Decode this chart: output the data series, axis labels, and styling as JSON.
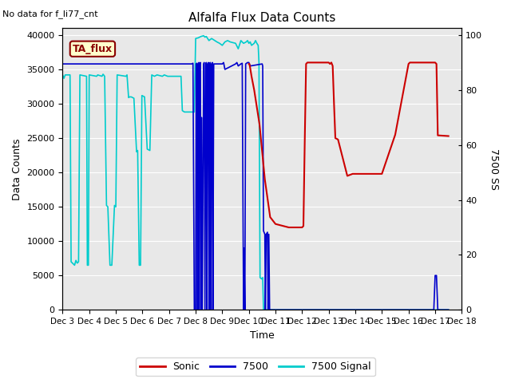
{
  "title": "Alfalfa Flux Data Counts",
  "xlabel": "Time",
  "ylabel": "Data Counts",
  "ylabel_right": "7500 SS",
  "top_left_text": "No data for f_li77_cnt",
  "legend_label": "TA_flux",
  "xlim_days": [
    3,
    18
  ],
  "ylim": [
    0,
    41000
  ],
  "ylim_right": [
    0,
    102.5
  ],
  "yticks": [
    0,
    5000,
    10000,
    15000,
    20000,
    25000,
    30000,
    35000,
    40000
  ],
  "yticks_right": [
    0,
    20,
    40,
    60,
    80,
    100
  ],
  "xtick_labels": [
    "Dec 3",
    "Dec 4",
    "Dec 5",
    "Dec 6",
    "Dec 7",
    "Dec 8",
    "Dec 9",
    "Dec 10",
    "Dec 11",
    "Dec 12",
    "Dec 13",
    "Dec 14",
    "Dec 15",
    "Dec 16",
    "Dec 17",
    "Dec 18"
  ],
  "bg_color": "#e8e8e8",
  "sonic_color": "#cc0000",
  "b7500_color": "#0000cc",
  "signal_color": "#00cccc",
  "sonic_data": [
    [
      10.0,
      35800
    ],
    [
      10.02,
      35800
    ],
    [
      10.05,
      35200
    ],
    [
      10.1,
      34000
    ],
    [
      10.2,
      32000
    ],
    [
      10.4,
      27000
    ],
    [
      10.6,
      19000
    ],
    [
      10.8,
      13500
    ],
    [
      11.0,
      12500
    ],
    [
      11.5,
      12000
    ],
    [
      12.0,
      12000
    ],
    [
      12.05,
      12200
    ],
    [
      12.1,
      24500
    ],
    [
      12.15,
      35800
    ],
    [
      12.2,
      36000
    ],
    [
      13.0,
      36000
    ],
    [
      13.05,
      35800
    ],
    [
      13.1,
      36000
    ],
    [
      13.15,
      35500
    ],
    [
      13.2,
      30000
    ],
    [
      13.25,
      25000
    ],
    [
      13.35,
      24800
    ],
    [
      13.7,
      19500
    ],
    [
      13.9,
      19800
    ],
    [
      14.2,
      19800
    ],
    [
      15.0,
      19800
    ],
    [
      15.5,
      25500
    ],
    [
      16.0,
      35800
    ],
    [
      16.05,
      36000
    ],
    [
      17.0,
      36000
    ],
    [
      17.05,
      35800
    ],
    [
      17.1,
      25400
    ],
    [
      17.5,
      25300
    ]
  ],
  "b7500_data": [
    [
      3.0,
      35800
    ],
    [
      7.0,
      35800
    ],
    [
      7.85,
      35800
    ],
    [
      7.9,
      35900
    ],
    [
      7.95,
      0
    ],
    [
      8.0,
      0
    ],
    [
      8.02,
      35800
    ],
    [
      8.05,
      35900
    ],
    [
      8.07,
      0
    ],
    [
      8.1,
      35800
    ],
    [
      8.12,
      36000
    ],
    [
      8.13,
      0
    ],
    [
      8.15,
      35800
    ],
    [
      8.18,
      36000
    ],
    [
      8.2,
      0
    ],
    [
      8.22,
      28000
    ],
    [
      8.25,
      0
    ],
    [
      8.3,
      35800
    ],
    [
      8.32,
      36000
    ],
    [
      8.35,
      0
    ],
    [
      8.38,
      35800
    ],
    [
      8.4,
      36000
    ],
    [
      8.42,
      0
    ],
    [
      8.45,
      35800
    ],
    [
      8.48,
      36000
    ],
    [
      8.5,
      0
    ],
    [
      8.52,
      35800
    ],
    [
      8.55,
      36000
    ],
    [
      8.58,
      0
    ],
    [
      8.6,
      35800
    ],
    [
      8.63,
      36000
    ],
    [
      8.65,
      0
    ],
    [
      8.68,
      35800
    ],
    [
      9.0,
      35800
    ],
    [
      9.05,
      36000
    ],
    [
      9.1,
      35000
    ],
    [
      9.5,
      35800
    ],
    [
      9.55,
      36000
    ],
    [
      9.6,
      35500
    ],
    [
      9.7,
      35800
    ],
    [
      9.75,
      35900
    ],
    [
      9.8,
      0
    ],
    [
      9.82,
      9000
    ],
    [
      9.85,
      0
    ],
    [
      9.88,
      35800
    ],
    [
      9.95,
      36000
    ],
    [
      10.0,
      36000
    ],
    [
      10.02,
      35800
    ],
    [
      10.05,
      35500
    ],
    [
      10.5,
      35800
    ],
    [
      10.52,
      35500
    ],
    [
      10.55,
      11500
    ],
    [
      10.6,
      11000
    ],
    [
      10.62,
      0
    ],
    [
      10.65,
      11000
    ],
    [
      10.7,
      11300
    ],
    [
      10.72,
      0
    ],
    [
      10.75,
      11000
    ],
    [
      10.78,
      0
    ],
    [
      16.95,
      0
    ],
    [
      17.0,
      5000
    ],
    [
      17.05,
      5000
    ],
    [
      17.1,
      0
    ],
    [
      17.5,
      0
    ]
  ],
  "signal_data": [
    [
      3.0,
      34200
    ],
    [
      3.05,
      33700
    ],
    [
      3.1,
      34200
    ],
    [
      3.28,
      34200
    ],
    [
      3.32,
      7000
    ],
    [
      3.45,
      6500
    ],
    [
      3.5,
      7200
    ],
    [
      3.55,
      6800
    ],
    [
      3.6,
      7000
    ],
    [
      3.65,
      34200
    ],
    [
      3.9,
      34000
    ],
    [
      3.93,
      6500
    ],
    [
      3.97,
      6500
    ],
    [
      4.0,
      34200
    ],
    [
      4.28,
      34000
    ],
    [
      4.32,
      34200
    ],
    [
      4.48,
      34000
    ],
    [
      4.52,
      34300
    ],
    [
      4.58,
      34000
    ],
    [
      4.65,
      15200
    ],
    [
      4.7,
      15000
    ],
    [
      4.78,
      6500
    ],
    [
      4.85,
      6500
    ],
    [
      4.95,
      15200
    ],
    [
      5.0,
      15000
    ],
    [
      5.05,
      34200
    ],
    [
      5.38,
      34000
    ],
    [
      5.42,
      34200
    ],
    [
      5.48,
      30900
    ],
    [
      5.52,
      31000
    ],
    [
      5.58,
      31000
    ],
    [
      5.68,
      30800
    ],
    [
      5.78,
      23000
    ],
    [
      5.82,
      23200
    ],
    [
      5.88,
      6500
    ],
    [
      5.93,
      6500
    ],
    [
      5.98,
      31200
    ],
    [
      6.08,
      31000
    ],
    [
      6.18,
      23400
    ],
    [
      6.28,
      23200
    ],
    [
      6.35,
      34200
    ],
    [
      6.45,
      34000
    ],
    [
      6.55,
      34200
    ],
    [
      6.75,
      34000
    ],
    [
      6.82,
      34200
    ],
    [
      6.95,
      34000
    ],
    [
      7.45,
      34000
    ],
    [
      7.5,
      29000
    ],
    [
      7.58,
      28800
    ],
    [
      7.95,
      28800
    ],
    [
      8.0,
      39500
    ],
    [
      8.1,
      39600
    ],
    [
      8.2,
      39800
    ],
    [
      8.3,
      39900
    ],
    [
      8.35,
      39700
    ],
    [
      8.4,
      39800
    ],
    [
      8.5,
      39200
    ],
    [
      8.6,
      39500
    ],
    [
      8.8,
      39000
    ],
    [
      8.9,
      38800
    ],
    [
      9.0,
      38500
    ],
    [
      9.1,
      39000
    ],
    [
      9.2,
      39200
    ],
    [
      9.3,
      39000
    ],
    [
      9.5,
      38800
    ],
    [
      9.6,
      38000
    ],
    [
      9.7,
      39200
    ],
    [
      9.8,
      38800
    ],
    [
      9.9,
      39000
    ],
    [
      9.95,
      39200
    ],
    [
      10.0,
      38800
    ],
    [
      10.05,
      39000
    ],
    [
      10.1,
      38500
    ],
    [
      10.2,
      38800
    ],
    [
      10.25,
      39200
    ],
    [
      10.3,
      38800
    ],
    [
      10.35,
      38500
    ],
    [
      10.38,
      36000
    ],
    [
      10.42,
      4700
    ],
    [
      10.48,
      4500
    ],
    [
      10.52,
      4700
    ],
    [
      10.55,
      0
    ],
    [
      10.6,
      0
    ],
    [
      17.5,
      0
    ]
  ]
}
